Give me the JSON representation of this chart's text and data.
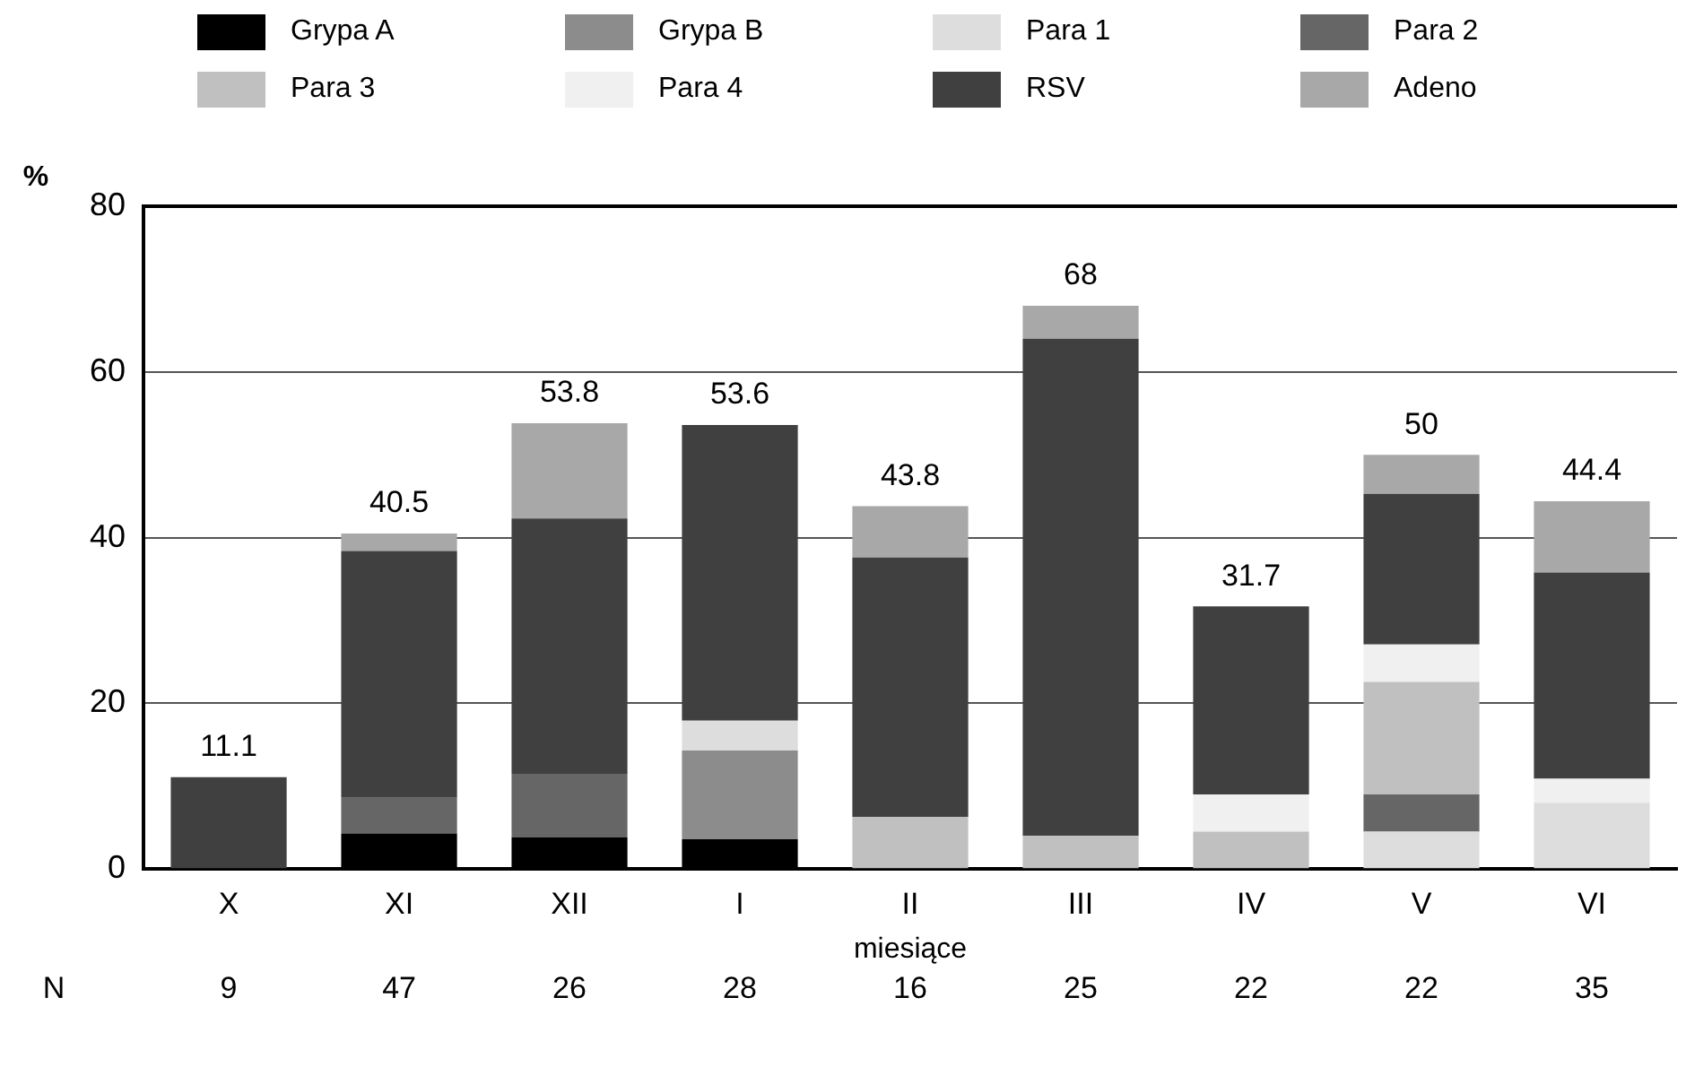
{
  "chart_data": {
    "type": "bar",
    "stacked": true,
    "categories": [
      "X",
      "XI",
      "XII",
      "I",
      "II",
      "III",
      "IV",
      "V",
      "VI"
    ],
    "series": [
      {
        "name": "Grypa A",
        "color": "#000000",
        "values": [
          null,
          4.3,
          3.8,
          3.6,
          null,
          null,
          null,
          null,
          null
        ]
      },
      {
        "name": "Grypa B",
        "color": "#8c8c8c",
        "values": [
          null,
          null,
          null,
          10.7,
          null,
          null,
          null,
          null,
          null
        ]
      },
      {
        "name": "Para 1",
        "color": "#dddddd",
        "values": [
          null,
          null,
          null,
          3.6,
          null,
          null,
          null,
          4.5,
          8.0
        ]
      },
      {
        "name": "Para 2",
        "color": "#666666",
        "values": [
          null,
          4.3,
          7.7,
          null,
          null,
          null,
          null,
          4.5,
          null
        ]
      },
      {
        "name": "Para 3",
        "color": "#c0c0c0",
        "values": [
          null,
          null,
          null,
          null,
          6.3,
          4.0,
          4.5,
          13.6,
          null
        ]
      },
      {
        "name": "Para 4",
        "color": "#f0f0f0",
        "values": [
          null,
          null,
          null,
          null,
          null,
          null,
          4.5,
          4.5,
          2.9
        ]
      },
      {
        "name": "RSV",
        "color": "#404040",
        "values": [
          11.1,
          29.8,
          30.8,
          35.7,
          31.3,
          60.0,
          22.7,
          18.2,
          24.9
        ]
      },
      {
        "name": "Adeno",
        "color": "#a8a8a8",
        "values": [
          null,
          2.1,
          11.5,
          null,
          6.2,
          4.0,
          null,
          4.7,
          8.6
        ]
      }
    ],
    "totals": [
      "11.1",
      "40.5",
      "53.8",
      "53.6",
      "43.8",
      "68",
      "31.7",
      "50",
      "44.4"
    ],
    "ylabel": "%",
    "xlabel": "miesiące",
    "ylim": [
      0,
      80
    ],
    "yticks": [
      0,
      20,
      40,
      60,
      80
    ],
    "grid": "y",
    "legend": "top",
    "annotations": [
      "N",
      "9",
      "47",
      "26",
      "28",
      "16",
      "25",
      "22",
      "22",
      "35"
    ]
  }
}
